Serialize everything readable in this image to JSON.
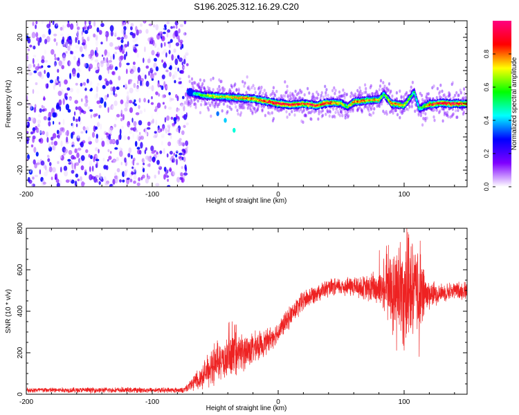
{
  "figure": {
    "title": "S196.2025.312.16.29.C20"
  },
  "chart_data": [
    {
      "type": "heatmap",
      "name": "spectrogram",
      "xlabel": "Height of straight line (km)",
      "ylabel": "Frequency (Hz)",
      "xlim": [
        -200,
        150
      ],
      "ylim": [
        -25,
        25
      ],
      "xticks": [
        -200,
        -100,
        0,
        100
      ],
      "yticks": [
        -20,
        -10,
        0,
        10,
        20
      ],
      "colorbar": {
        "label": "Normalized spectral amplitude",
        "range": [
          0,
          1
        ],
        "ticks": [
          0.0,
          0.2,
          0.4,
          0.6,
          0.8
        ],
        "tick_labels": [
          "0.0",
          "0.2",
          "0.4",
          "0.6",
          "0.8"
        ],
        "colormap": [
          "#ffffff",
          "#7f00ff",
          "#0000ff",
          "#00ffff",
          "#00ff00",
          "#ffff00",
          "#ff0000",
          "#ff0080"
        ]
      },
      "noise_region": {
        "x": [
          -200,
          -72
        ],
        "y": [
          -25,
          25
        ],
        "amplitude_range": [
          0.0,
          0.3
        ]
      },
      "signal_trace": {
        "x": [
          -72,
          -60,
          -40,
          -20,
          -10,
          0,
          10,
          20,
          30,
          40,
          50,
          55,
          60,
          70,
          80,
          84,
          90,
          100,
          108,
          112,
          120,
          130,
          140,
          150
        ],
        "freq": [
          3.5,
          2.5,
          2.0,
          1.5,
          0.8,
          0.0,
          -0.3,
          0.0,
          -0.5,
          0.3,
          0.2,
          -1.0,
          0.5,
          1.0,
          1.2,
          3.0,
          0.0,
          -0.5,
          3.5,
          -1.5,
          -0.2,
          0.2,
          0.0,
          0.0
        ],
        "peak_amplitude": [
          0.4,
          0.6,
          0.7,
          0.8,
          0.85,
          0.95,
          0.9,
          0.85,
          0.9,
          0.8,
          0.7,
          0.6,
          0.8,
          0.75,
          0.7,
          0.5,
          0.8,
          0.7,
          0.5,
          0.5,
          0.8,
          0.9,
          0.9,
          0.8
        ]
      },
      "scattered_points": [
        {
          "x": -48,
          "y": -3,
          "amplitude": 0.35
        },
        {
          "x": -42,
          "y": -5,
          "amplitude": 0.4
        },
        {
          "x": -35,
          "y": -8,
          "amplitude": 0.45
        }
      ]
    },
    {
      "type": "line",
      "name": "snr",
      "xlabel": "Height of straight line (km)",
      "ylabel": "SNR (10 * v/v)",
      "xlim": [
        -200,
        150
      ],
      "ylim": [
        0,
        800
      ],
      "xticks": [
        -200,
        -100,
        0,
        100
      ],
      "yticks": [
        0,
        200,
        400,
        600,
        800
      ],
      "color": "#ee2222",
      "envelope": {
        "x": [
          -200,
          -75,
          -70,
          -60,
          -50,
          -40,
          -30,
          -20,
          -10,
          0,
          10,
          20,
          30,
          40,
          50,
          60,
          70,
          80,
          90,
          100,
          110,
          120,
          130,
          140,
          150
        ],
        "mean": [
          20,
          20,
          40,
          90,
          140,
          170,
          200,
          220,
          250,
          300,
          380,
          450,
          490,
          510,
          520,
          520,
          510,
          510,
          500,
          500,
          490,
          480,
          490,
          500,
          500
        ],
        "spread": [
          15,
          15,
          40,
          70,
          100,
          120,
          110,
          90,
          70,
          60,
          60,
          60,
          50,
          50,
          50,
          60,
          70,
          120,
          200,
          330,
          250,
          80,
          50,
          50,
          50
        ]
      }
    }
  ]
}
